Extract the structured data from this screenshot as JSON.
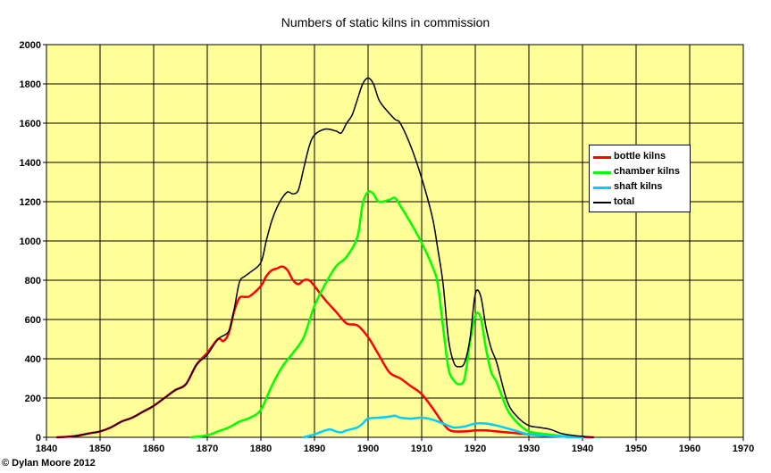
{
  "chart_data": {
    "type": "line",
    "title": "Numbers of static kilns in commission",
    "xlabel": "",
    "ylabel": "",
    "xlim": [
      1840,
      1970
    ],
    "ylim": [
      0,
      2000
    ],
    "x_ticks": [
      1840,
      1850,
      1860,
      1870,
      1880,
      1890,
      1900,
      1910,
      1920,
      1930,
      1940,
      1950,
      1960,
      1970
    ],
    "y_ticks": [
      0,
      200,
      400,
      600,
      800,
      1000,
      1200,
      1400,
      1600,
      1800,
      2000
    ],
    "grid": true,
    "legend_position": "right",
    "colors": {
      "plot_background": "#ffff99",
      "grid": "#000000"
    },
    "series": [
      {
        "name": "bottle kilns",
        "color": "#ff0000",
        "x": [
          1842,
          1845,
          1848,
          1850,
          1852,
          1854,
          1856,
          1858,
          1860,
          1862,
          1864,
          1866,
          1868,
          1870,
          1872,
          1873,
          1874,
          1875,
          1876,
          1877,
          1878,
          1880,
          1881,
          1882,
          1883,
          1884,
          1885,
          1886,
          1887,
          1888,
          1889,
          1890,
          1892,
          1894,
          1896,
          1898,
          1900,
          1902,
          1904,
          1906,
          1908,
          1910,
          1912,
          1914,
          1915,
          1916,
          1918,
          1920,
          1922,
          1924,
          1926,
          1928,
          1930,
          1932,
          1935,
          1938,
          1942
        ],
        "y": [
          0,
          5,
          20,
          30,
          50,
          80,
          100,
          130,
          160,
          200,
          240,
          270,
          370,
          430,
          500,
          490,
          530,
          640,
          710,
          715,
          720,
          770,
          820,
          850,
          860,
          870,
          850,
          800,
          780,
          800,
          800,
          770,
          700,
          640,
          580,
          570,
          510,
          420,
          330,
          300,
          260,
          220,
          150,
          70,
          40,
          30,
          30,
          35,
          35,
          30,
          25,
          20,
          15,
          10,
          5,
          2,
          0
        ]
      },
      {
        "name": "chamber kilns",
        "color": "#00ff00",
        "x": [
          1867,
          1870,
          1872,
          1874,
          1876,
          1878,
          1880,
          1882,
          1884,
          1886,
          1888,
          1890,
          1892,
          1894,
          1896,
          1898,
          1899,
          1900,
          1901,
          1902,
          1904,
          1905,
          1906,
          1908,
          1910,
          1912,
          1913,
          1914,
          1915,
          1916,
          1917,
          1918,
          1919,
          1920,
          1921,
          1922,
          1923,
          1924,
          1926,
          1928,
          1930,
          1932,
          1935,
          1938
        ],
        "y": [
          0,
          10,
          30,
          50,
          80,
          100,
          140,
          260,
          360,
          430,
          510,
          670,
          780,
          870,
          920,
          1020,
          1190,
          1250,
          1240,
          1200,
          1210,
          1220,
          1180,
          1090,
          990,
          870,
          780,
          560,
          350,
          290,
          270,
          300,
          480,
          620,
          610,
          450,
          330,
          280,
          140,
          70,
          30,
          20,
          10,
          0
        ]
      },
      {
        "name": "shaft kilns",
        "color": "#00ccff",
        "x": [
          1888,
          1890,
          1892,
          1893,
          1894,
          1895,
          1896,
          1898,
          1899,
          1900,
          1902,
          1904,
          1905,
          1906,
          1908,
          1910,
          1912,
          1914,
          1916,
          1918,
          1920,
          1922,
          1924,
          1926,
          1928,
          1930,
          1935,
          1940
        ],
        "y": [
          0,
          15,
          35,
          40,
          30,
          25,
          35,
          50,
          70,
          95,
          100,
          105,
          110,
          100,
          95,
          100,
          90,
          70,
          50,
          55,
          70,
          70,
          60,
          45,
          30,
          15,
          5,
          0
        ]
      },
      {
        "name": "total",
        "color": "#000000",
        "x": [
          1842,
          1845,
          1848,
          1850,
          1852,
          1854,
          1856,
          1858,
          1860,
          1862,
          1864,
          1866,
          1868,
          1870,
          1872,
          1874,
          1875,
          1876,
          1877,
          1878,
          1880,
          1881,
          1882,
          1883,
          1884,
          1885,
          1886,
          1887,
          1888,
          1889,
          1890,
          1892,
          1894,
          1895,
          1896,
          1897,
          1898,
          1899,
          1900,
          1901,
          1902,
          1903,
          1905,
          1906,
          1908,
          1910,
          1912,
          1913,
          1914,
          1915,
          1916,
          1917,
          1918,
          1919,
          1920,
          1921,
          1922,
          1923,
          1924,
          1926,
          1928,
          1930,
          1932,
          1934,
          1936,
          1938,
          1940,
          1942
        ],
        "y": [
          0,
          5,
          20,
          30,
          50,
          80,
          100,
          130,
          160,
          200,
          240,
          270,
          370,
          420,
          500,
          540,
          650,
          790,
          820,
          840,
          890,
          1000,
          1100,
          1170,
          1220,
          1250,
          1240,
          1260,
          1370,
          1480,
          1540,
          1570,
          1560,
          1550,
          1600,
          1640,
          1720,
          1800,
          1830,
          1800,
          1720,
          1680,
          1620,
          1600,
          1480,
          1320,
          1120,
          960,
          780,
          500,
          380,
          360,
          380,
          500,
          730,
          720,
          560,
          450,
          380,
          180,
          100,
          60,
          50,
          40,
          20,
          10,
          5,
          0
        ]
      }
    ]
  },
  "copyright": "© Dylan Moore 2012"
}
